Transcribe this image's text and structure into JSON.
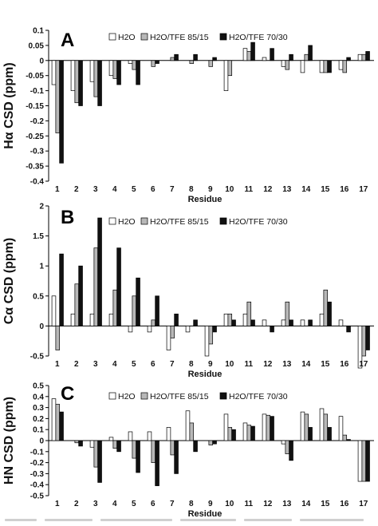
{
  "colors": {
    "H2O": "#ffffff",
    "H2O/TFE 85/15": "#b8b8b8",
    "H2O/TFE 70/30": "#111111",
    "bar_outline": "#000000"
  },
  "chart_data": [
    {
      "type": "bar",
      "panel": "A",
      "title": "",
      "ylabel": "Hα CSD (ppm)",
      "xlabel": "Residue",
      "ylim": [
        -0.4,
        0.1
      ],
      "yticks": [
        0.1,
        0.05,
        0,
        -0.05,
        -0.1,
        -0.15,
        -0.2,
        -0.25,
        -0.3,
        -0.35,
        -0.4
      ],
      "ytick_labels": [
        "0.1",
        "0.05",
        "0",
        "-0.05",
        "-0.1",
        "-0.15",
        "-0.2",
        "-0.25",
        "-0.3",
        "-0.35",
        "-0.4"
      ],
      "categories": [
        "1",
        "2",
        "3",
        "4",
        "5",
        "6",
        "7",
        "8",
        "9",
        "10",
        "11",
        "12",
        "13",
        "14",
        "15",
        "16",
        "17"
      ],
      "legend_position": "top-right",
      "series": [
        {
          "name": "H2O",
          "values": [
            -0.08,
            -0.1,
            -0.07,
            -0.05,
            -0.01,
            0,
            0,
            0,
            0,
            -0.1,
            0.04,
            0.01,
            -0.02,
            -0.04,
            -0.04,
            -0.03,
            0.02
          ]
        },
        {
          "name": "H2O/TFE 85/15",
          "values": [
            -0.24,
            -0.14,
            -0.12,
            -0.06,
            -0.03,
            -0.02,
            0.01,
            -0.01,
            -0.02,
            -0.05,
            0.03,
            0,
            -0.03,
            0.02,
            -0.04,
            -0.04,
            0.02
          ]
        },
        {
          "name": "H2O/TFE 70/30",
          "values": [
            -0.34,
            -0.15,
            -0.15,
            -0.08,
            -0.08,
            -0.01,
            0.02,
            0.02,
            0.01,
            0,
            0.06,
            0.04,
            0.02,
            0.05,
            -0.04,
            0.01,
            0.03
          ]
        }
      ]
    },
    {
      "type": "bar",
      "panel": "B",
      "title": "",
      "ylabel": "Cα CSD (ppm)",
      "xlabel": "Residue",
      "ylim": [
        -0.5,
        2
      ],
      "yticks": [
        2,
        1.5,
        1,
        0.5,
        0,
        -0.5
      ],
      "ytick_labels": [
        "2",
        "1.5",
        "1",
        "0.5",
        "0",
        "-0.5"
      ],
      "categories": [
        "1",
        "2",
        "3",
        "4",
        "5",
        "6",
        "7",
        "8",
        "9",
        "10",
        "11",
        "12",
        "13",
        "14",
        "15",
        "16",
        "17"
      ],
      "legend_position": "top-right",
      "series": [
        {
          "name": "H2O",
          "values": [
            0.5,
            0.2,
            0.2,
            0.2,
            -0.1,
            -0.1,
            -0.4,
            -0.1,
            -0.5,
            0.2,
            0.2,
            0.1,
            0.1,
            0.1,
            0.2,
            0.1,
            -0.7
          ]
        },
        {
          "name": "H2O/TFE 85/15",
          "values": [
            -0.4,
            0.7,
            1.3,
            0.6,
            0.5,
            0.1,
            -0.2,
            0,
            -0.3,
            0.2,
            0.4,
            0,
            0.4,
            0,
            0.6,
            0,
            -0.5
          ]
        },
        {
          "name": "H2O/TFE 70/30",
          "values": [
            1.2,
            1.0,
            1.8,
            1.3,
            0.8,
            0.5,
            0.2,
            0.1,
            -0.1,
            0.1,
            0.1,
            -0.1,
            0.1,
            0.1,
            0.4,
            -0.1,
            -0.4
          ]
        }
      ]
    },
    {
      "type": "bar",
      "panel": "C",
      "title": "",
      "ylabel": "HN CSD (ppm)",
      "xlabel": "Residue",
      "ylim": [
        -0.5,
        0.5
      ],
      "yticks": [
        0.5,
        0.4,
        0.3,
        0.2,
        0.1,
        0,
        -0.1,
        -0.2,
        -0.3,
        -0.4,
        -0.5
      ],
      "ytick_labels": [
        "0.5",
        "0.4",
        "0.3",
        "0.2",
        "0.1",
        "0",
        "-0.1",
        "-0.2",
        "-0.3",
        "-0.4",
        "-0.5"
      ],
      "categories": [
        "1",
        "2",
        "3",
        "4",
        "5",
        "6",
        "7",
        "8",
        "9",
        "10",
        "11",
        "12",
        "13",
        "14",
        "15",
        "16",
        "17"
      ],
      "legend_position": "top-right",
      "series": [
        {
          "name": "H2O",
          "values": [
            0.38,
            0,
            -0.06,
            0.03,
            0.08,
            0.08,
            0.12,
            0.27,
            0,
            0.24,
            0.16,
            0.24,
            -0.03,
            0.26,
            0.29,
            0.22,
            -0.37
          ]
        },
        {
          "name": "H2O/TFE 85/15",
          "values": [
            0.33,
            -0.02,
            -0.24,
            -0.07,
            -0.16,
            -0.2,
            -0.13,
            0.16,
            -0.04,
            0.12,
            0.14,
            0.23,
            -0.12,
            0.24,
            0.24,
            0.05,
            -0.37
          ]
        },
        {
          "name": "H2O/TFE 70/30",
          "values": [
            0.26,
            -0.05,
            -0.38,
            -0.1,
            -0.29,
            -0.41,
            -0.3,
            -0.1,
            -0.03,
            0.1,
            0.13,
            0.22,
            -0.18,
            0.12,
            0.12,
            0.01,
            -0.37
          ]
        }
      ]
    }
  ]
}
